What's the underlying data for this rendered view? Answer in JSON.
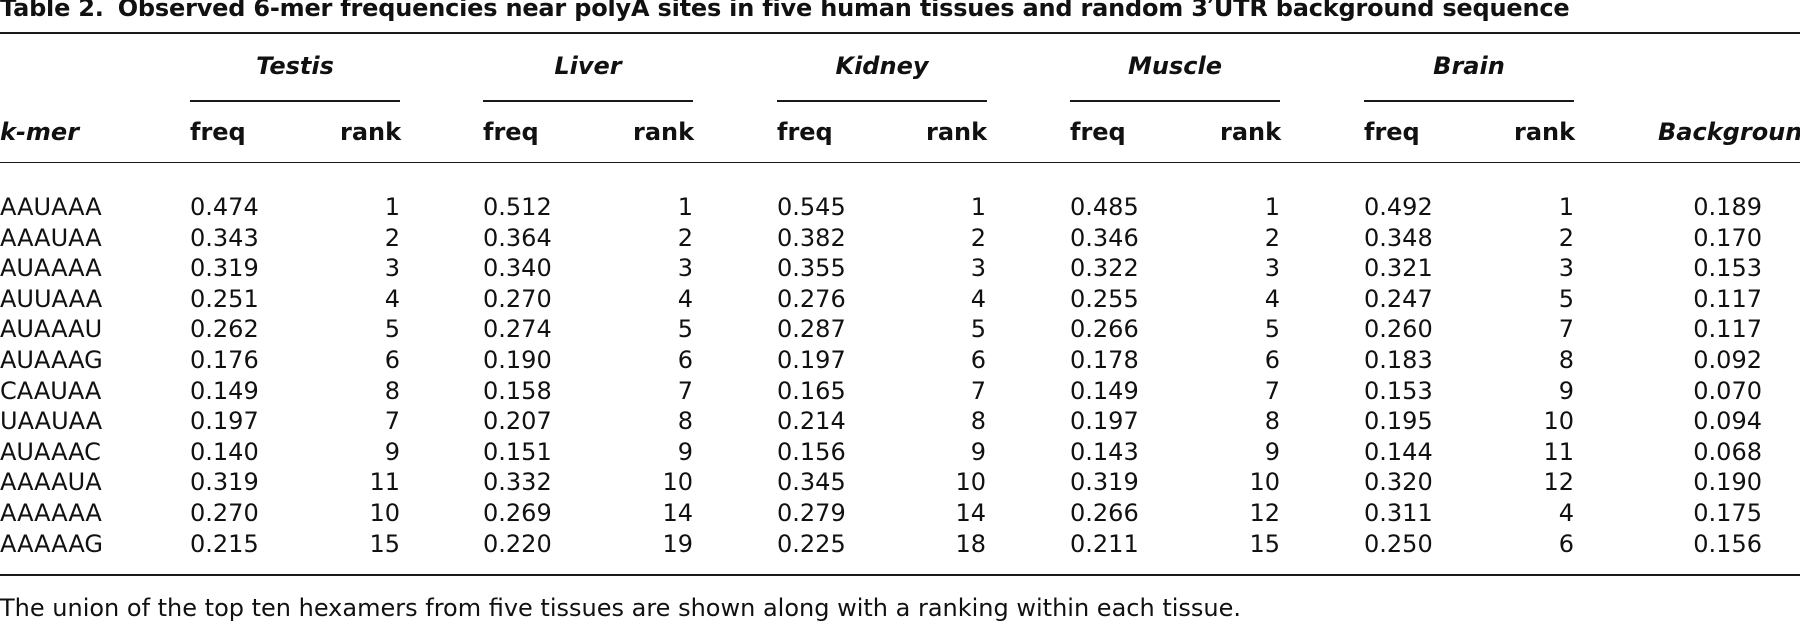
{
  "caption": {
    "label": "Table 2.",
    "title": "Observed 6-mer frequencies near polyA sites in five human tissues and random 3′UTR background sequence"
  },
  "headers": {
    "kmer": "k-mer",
    "freq": "freq",
    "rank": "rank",
    "background": "Background",
    "tissues": [
      "Testis",
      "Liver",
      "Kidney",
      "Muscle",
      "Brain"
    ]
  },
  "rows": [
    {
      "kmer": "AAUAAA",
      "vals": [
        [
          "0.474",
          "1"
        ],
        [
          "0.512",
          "1"
        ],
        [
          "0.545",
          "1"
        ],
        [
          "0.485",
          "1"
        ],
        [
          "0.492",
          "1"
        ]
      ],
      "background": "0.189"
    },
    {
      "kmer": "AAAUAA",
      "vals": [
        [
          "0.343",
          "2"
        ],
        [
          "0.364",
          "2"
        ],
        [
          "0.382",
          "2"
        ],
        [
          "0.346",
          "2"
        ],
        [
          "0.348",
          "2"
        ]
      ],
      "background": "0.170"
    },
    {
      "kmer": "AUAAAA",
      "vals": [
        [
          "0.319",
          "3"
        ],
        [
          "0.340",
          "3"
        ],
        [
          "0.355",
          "3"
        ],
        [
          "0.322",
          "3"
        ],
        [
          "0.321",
          "3"
        ]
      ],
      "background": "0.153"
    },
    {
      "kmer": "AUUAAA",
      "vals": [
        [
          "0.251",
          "4"
        ],
        [
          "0.270",
          "4"
        ],
        [
          "0.276",
          "4"
        ],
        [
          "0.255",
          "4"
        ],
        [
          "0.247",
          "5"
        ]
      ],
      "background": "0.117"
    },
    {
      "kmer": "AUAAAU",
      "vals": [
        [
          "0.262",
          "5"
        ],
        [
          "0.274",
          "5"
        ],
        [
          "0.287",
          "5"
        ],
        [
          "0.266",
          "5"
        ],
        [
          "0.260",
          "7"
        ]
      ],
      "background": "0.117"
    },
    {
      "kmer": "AUAAAG",
      "vals": [
        [
          "0.176",
          "6"
        ],
        [
          "0.190",
          "6"
        ],
        [
          "0.197",
          "6"
        ],
        [
          "0.178",
          "6"
        ],
        [
          "0.183",
          "8"
        ]
      ],
      "background": "0.092"
    },
    {
      "kmer": "CAAUAA",
      "vals": [
        [
          "0.149",
          "8"
        ],
        [
          "0.158",
          "7"
        ],
        [
          "0.165",
          "7"
        ],
        [
          "0.149",
          "7"
        ],
        [
          "0.153",
          "9"
        ]
      ],
      "background": "0.070"
    },
    {
      "kmer": "UAAUAA",
      "vals": [
        [
          "0.197",
          "7"
        ],
        [
          "0.207",
          "8"
        ],
        [
          "0.214",
          "8"
        ],
        [
          "0.197",
          "8"
        ],
        [
          "0.195",
          "10"
        ]
      ],
      "background": "0.094"
    },
    {
      "kmer": "AUAAAC",
      "vals": [
        [
          "0.140",
          "9"
        ],
        [
          "0.151",
          "9"
        ],
        [
          "0.156",
          "9"
        ],
        [
          "0.143",
          "9"
        ],
        [
          "0.144",
          "11"
        ]
      ],
      "background": "0.068"
    },
    {
      "kmer": "AAAAUA",
      "vals": [
        [
          "0.319",
          "11"
        ],
        [
          "0.332",
          "10"
        ],
        [
          "0.345",
          "10"
        ],
        [
          "0.319",
          "10"
        ],
        [
          "0.320",
          "12"
        ]
      ],
      "background": "0.190"
    },
    {
      "kmer": "AAAAAA",
      "vals": [
        [
          "0.270",
          "10"
        ],
        [
          "0.269",
          "14"
        ],
        [
          "0.279",
          "14"
        ],
        [
          "0.266",
          "12"
        ],
        [
          "0.311",
          "4"
        ]
      ],
      "background": "0.175"
    },
    {
      "kmer": "AAAAAG",
      "vals": [
        [
          "0.215",
          "15"
        ],
        [
          "0.220",
          "19"
        ],
        [
          "0.225",
          "18"
        ],
        [
          "0.211",
          "15"
        ],
        [
          "0.250",
          "6"
        ]
      ],
      "background": "0.156"
    }
  ],
  "footnote": "The union of the top ten hexamers from five tissues are shown along with a ranking within each tissue."
}
